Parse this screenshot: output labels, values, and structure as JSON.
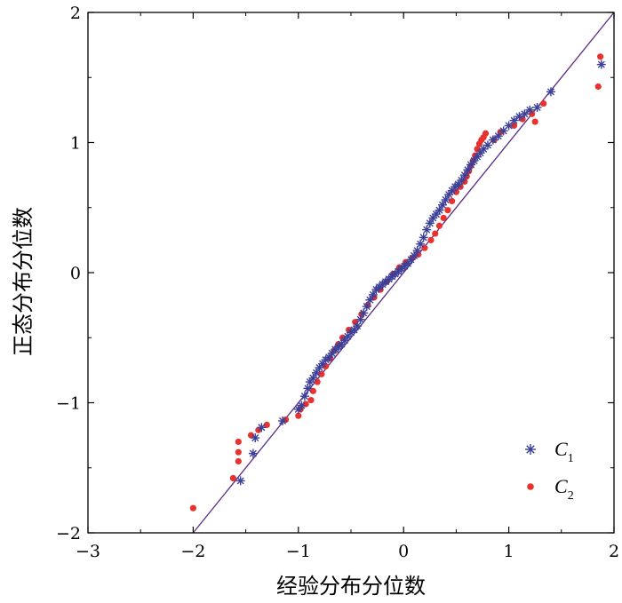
{
  "chart_data": {
    "type": "scatter",
    "title": "",
    "xlabel": "经验分布分位数",
    "ylabel": "正态分布分位数",
    "xlim": [
      -3,
      2
    ],
    "ylim": [
      -2,
      2
    ],
    "xticks": [
      -3,
      -2,
      -1,
      0,
      1,
      2
    ],
    "yticks": [
      -2,
      -1,
      0,
      1,
      2
    ],
    "xtick_labels": [
      "−3",
      "−2",
      "−1",
      "0",
      "1",
      "2"
    ],
    "ytick_labels": [
      "−2",
      "−1",
      "0",
      "1",
      "2"
    ],
    "grid": false,
    "legend_position": "bottom-right",
    "reference_line": {
      "x": [
        -2.0,
        2.0
      ],
      "y": [
        -2.0,
        2.0
      ],
      "color": "#5b2a86"
    },
    "series": [
      {
        "name": "C",
        "subscript": "1",
        "marker": "asterisk",
        "color": "#3b3f98",
        "x": [
          -1.55,
          -1.43,
          -1.41,
          -1.35,
          -1.15,
          -1.0,
          -0.97,
          -0.94,
          -0.91,
          -0.89,
          -0.86,
          -0.83,
          -0.8,
          -0.77,
          -0.74,
          -0.71,
          -0.68,
          -0.65,
          -0.62,
          -0.59,
          -0.56,
          -0.53,
          -0.5,
          -0.47,
          -0.44,
          -0.41,
          -0.38,
          -0.35,
          -0.32,
          -0.29,
          -0.26,
          -0.23,
          -0.2,
          -0.17,
          -0.14,
          -0.11,
          -0.08,
          -0.05,
          -0.02,
          0.01,
          0.04,
          0.07,
          0.1,
          0.13,
          0.16,
          0.19,
          0.22,
          0.25,
          0.28,
          0.31,
          0.34,
          0.37,
          0.4,
          0.43,
          0.46,
          0.49,
          0.52,
          0.55,
          0.58,
          0.61,
          0.64,
          0.67,
          0.7,
          0.73,
          0.76,
          0.8,
          0.85,
          0.9,
          0.95,
          1.0,
          1.05,
          1.1,
          1.15,
          1.2,
          1.27,
          1.4,
          1.88
        ],
        "y": [
          -1.6,
          -1.39,
          -1.27,
          -1.19,
          -1.14,
          -1.05,
          -1.02,
          -0.95,
          -0.89,
          -0.84,
          -0.81,
          -0.77,
          -0.73,
          -0.7,
          -0.67,
          -0.65,
          -0.62,
          -0.59,
          -0.57,
          -0.55,
          -0.52,
          -0.49,
          -0.46,
          -0.44,
          -0.41,
          -0.36,
          -0.31,
          -0.26,
          -0.21,
          -0.17,
          -0.13,
          -0.11,
          -0.09,
          -0.07,
          -0.05,
          -0.03,
          -0.01,
          0.01,
          0.03,
          0.05,
          0.07,
          0.1,
          0.13,
          0.17,
          0.22,
          0.27,
          0.33,
          0.38,
          0.42,
          0.45,
          0.48,
          0.52,
          0.56,
          0.6,
          0.63,
          0.66,
          0.68,
          0.71,
          0.75,
          0.79,
          0.83,
          0.86,
          0.89,
          0.92,
          0.95,
          0.98,
          1.02,
          1.05,
          1.09,
          1.13,
          1.17,
          1.2,
          1.22,
          1.25,
          1.27,
          1.39,
          1.6
        ]
      },
      {
        "name": "C",
        "subscript": "2",
        "marker": "dot",
        "color": "#e8322e",
        "x": [
          -2.0,
          -1.62,
          -1.57,
          -1.57,
          -1.57,
          -1.45,
          -1.38,
          -1.3,
          -1.12,
          -1.0,
          -0.98,
          -0.93,
          -0.88,
          -0.86,
          -0.82,
          -0.78,
          -0.74,
          -0.7,
          -0.66,
          -0.62,
          -0.58,
          -0.52,
          -0.46,
          -0.4,
          -0.34,
          -0.28,
          -0.22,
          -0.16,
          -0.1,
          -0.04,
          0.02,
          0.08,
          0.14,
          0.2,
          0.26,
          0.3,
          0.34,
          0.38,
          0.42,
          0.46,
          0.5,
          0.54,
          0.58,
          0.6,
          0.62,
          0.64,
          0.66,
          0.68,
          0.7,
          0.72,
          0.74,
          0.76,
          0.78,
          0.86,
          0.92,
          1.05,
          1.13,
          1.22,
          1.25,
          1.33,
          1.85,
          1.87
        ],
        "y": [
          -1.81,
          -1.58,
          -1.45,
          -1.38,
          -1.3,
          -1.25,
          -1.21,
          -1.17,
          -1.13,
          -1.1,
          -1.05,
          -1.01,
          -0.98,
          -0.91,
          -0.84,
          -0.78,
          -0.72,
          -0.66,
          -0.6,
          -0.55,
          -0.5,
          -0.44,
          -0.38,
          -0.32,
          -0.25,
          -0.19,
          -0.13,
          -0.07,
          -0.01,
          0.04,
          0.08,
          0.11,
          0.14,
          0.19,
          0.25,
          0.3,
          0.36,
          0.42,
          0.48,
          0.55,
          0.62,
          0.66,
          0.7,
          0.74,
          0.78,
          0.82,
          0.86,
          0.9,
          0.95,
          0.99,
          1.02,
          1.04,
          1.07,
          1.02,
          1.08,
          1.13,
          1.18,
          1.22,
          1.16,
          1.3,
          1.43,
          1.66
        ]
      }
    ]
  }
}
